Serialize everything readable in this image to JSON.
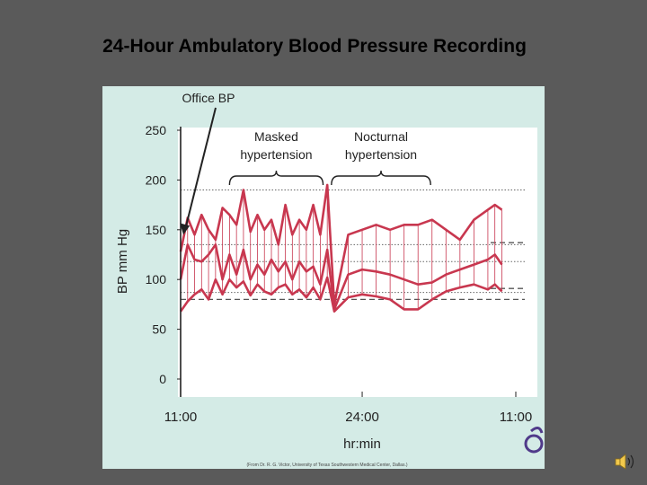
{
  "slide": {
    "title": "24-Hour Ambulatory Blood Pressure Recording"
  },
  "figure": {
    "credit": "(From Dr. R. G. Victor, University of Texas Southwestern Medical Center, Dallas.)"
  },
  "colors": {
    "background": "#5a5a5a",
    "panel": "#d4ebe6",
    "plot": "#ffffff",
    "trace": "#c8374f",
    "axis": "#222222"
  },
  "icons": {
    "logo": "elsevier-tree-logo",
    "speaker": "speaker-icon"
  },
  "chart_data": {
    "type": "line",
    "title": "",
    "xlabel": "hr:min",
    "ylabel": "BP mm Hg",
    "xlim": [
      0,
      24
    ],
    "ylim": [
      0,
      250
    ],
    "yticks": [
      0,
      50,
      100,
      150,
      200,
      250
    ],
    "xtick_labels": [
      {
        "x": 0,
        "label": "11:00"
      },
      {
        "x": 13,
        "label": "24:00"
      },
      {
        "x": 24,
        "label": "11:00"
      }
    ],
    "annotations": [
      {
        "text": "Office BP",
        "points_to": {
          "x": 0.2,
          "y": 145
        }
      },
      {
        "text": "Masked hypertension",
        "x_range": [
          3.5,
          10.2
        ]
      },
      {
        "text": "Nocturnal hypertension",
        "x_range": [
          10.8,
          17.9
        ]
      }
    ],
    "reference_lines": [
      {
        "name": "",
        "y": 190,
        "style": "dotted"
      },
      {
        "name": "",
        "y": 135,
        "style": "dotted"
      },
      {
        "name": "",
        "y": 118,
        "style": "dotted"
      },
      {
        "name": "",
        "y": 87,
        "style": "dotted"
      },
      {
        "name": "",
        "y": 80,
        "style": "dashed"
      },
      {
        "name": "",
        "y": 137,
        "style": "dashed",
        "x_range": [
          22.2,
          24
        ]
      },
      {
        "name": "",
        "y": 91,
        "style": "dashed",
        "x_range": [
          22.2,
          24
        ]
      }
    ],
    "x": [
      0,
      0.5,
      1,
      1.5,
      2,
      2.5,
      3,
      3.5,
      4,
      4.5,
      5,
      5.5,
      6,
      6.5,
      7,
      7.5,
      8,
      8.5,
      9,
      9.5,
      10,
      10.5,
      11,
      12,
      13,
      14,
      15,
      16,
      17,
      18,
      19,
      20,
      21,
      22,
      22.5,
      23
    ],
    "series": [
      {
        "name": "",
        "values": [
          128,
          162,
          145,
          165,
          150,
          140,
          172,
          165,
          155,
          190,
          148,
          165,
          150,
          160,
          135,
          175,
          145,
          160,
          150,
          175,
          145,
          195,
          75,
          145,
          150,
          155,
          150,
          155,
          155,
          160,
          150,
          140,
          160,
          170,
          175,
          170
        ]
      },
      {
        "name": "",
        "values": [
          100,
          135,
          120,
          118,
          125,
          135,
          100,
          125,
          105,
          130,
          100,
          115,
          105,
          120,
          108,
          118,
          100,
          118,
          108,
          113,
          95,
          130,
          70,
          105,
          110,
          108,
          105,
          100,
          95,
          97,
          105,
          110,
          115,
          120,
          125,
          115
        ]
      },
      {
        "name": "",
        "values": [
          68,
          78,
          85,
          90,
          80,
          100,
          85,
          100,
          92,
          98,
          84,
          95,
          88,
          85,
          92,
          95,
          85,
          90,
          82,
          92,
          80,
          102,
          68,
          82,
          85,
          83,
          80,
          70,
          70,
          80,
          88,
          92,
          95,
          90,
          95,
          88
        ]
      }
    ]
  }
}
